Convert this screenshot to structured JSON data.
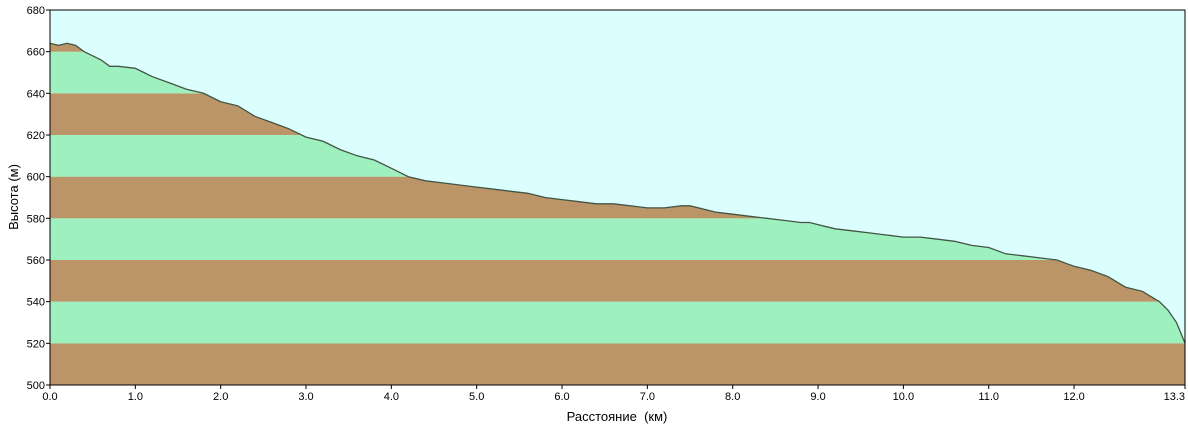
{
  "chart_data": {
    "type": "area",
    "xlabel": "Расстояние  (км)",
    "ylabel": "Высота (м)",
    "xlim": [
      0,
      13.3
    ],
    "ylim": [
      500,
      680
    ],
    "x_ticks": [
      "0.0",
      "1.0",
      "2.0",
      "3.0",
      "4.0",
      "5.0",
      "6.0",
      "7.0",
      "8.0",
      "9.0",
      "10.0",
      "11.0",
      "12.0",
      "13.3"
    ],
    "x_tick_values": [
      0,
      1,
      2,
      3,
      4,
      5,
      6,
      7,
      8,
      9,
      10,
      11,
      12,
      13.3
    ],
    "y_ticks": [
      "680",
      "660",
      "640",
      "620",
      "600",
      "580",
      "560",
      "540",
      "520",
      "500"
    ],
    "y_tick_values": [
      680,
      660,
      640,
      620,
      600,
      580,
      560,
      540,
      520,
      500
    ],
    "band_colors": [
      "#bb9468",
      "#9ef0be"
    ],
    "sky_color": "#dafffe",
    "line_color": "#445544",
    "series": [
      {
        "x": [
          0,
          0.1,
          0.2,
          0.3,
          0.4,
          0.5,
          0.6,
          0.7,
          0.8,
          1.0,
          1.1,
          1.2,
          1.4,
          1.6,
          1.8,
          2.0,
          2.2,
          2.4,
          2.6,
          2.8,
          3.0,
          3.2,
          3.4,
          3.6,
          3.8,
          4.0,
          4.2,
          4.4,
          4.6,
          4.8,
          5.0,
          5.2,
          5.4,
          5.6,
          5.8,
          6.0,
          6.2,
          6.4,
          6.6,
          6.8,
          7.0,
          7.2,
          7.4,
          7.5,
          7.6,
          7.8,
          8.0,
          8.2,
          8.4,
          8.6,
          8.8,
          8.9,
          9.0,
          9.2,
          9.4,
          9.6,
          9.8,
          10.0,
          10.2,
          10.4,
          10.6,
          10.8,
          11.0,
          11.2,
          11.4,
          11.6,
          11.8,
          12.0,
          12.2,
          12.4,
          12.6,
          12.8,
          13.0,
          13.1,
          13.2,
          13.3
        ],
        "y": [
          664,
          663,
          664,
          663,
          660,
          658,
          656,
          653,
          653,
          652,
          650,
          648,
          645,
          642,
          640,
          636,
          634,
          629,
          626,
          623,
          619,
          617,
          613,
          610,
          608,
          604,
          600,
          598,
          597,
          596,
          595,
          594,
          593,
          592,
          590,
          589,
          588,
          587,
          587,
          586,
          585,
          585,
          586,
          586,
          585,
          583,
          582,
          581,
          580,
          579,
          578,
          578,
          577,
          575,
          574,
          573,
          572,
          571,
          571,
          570,
          569,
          567,
          566,
          563,
          562,
          561,
          560,
          557,
          555,
          552,
          547,
          545,
          540,
          536,
          530,
          520
        ]
      }
    ]
  }
}
